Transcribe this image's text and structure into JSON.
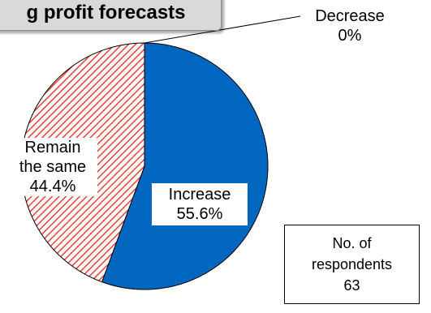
{
  "chart_data": {
    "type": "pie",
    "title": "g profit forecasts",
    "slices": [
      {
        "label": "Increase",
        "value": 55.6,
        "value_label": "55.6%",
        "color": "#0066c0",
        "pattern": "solid"
      },
      {
        "label": "Decrease",
        "value": 0,
        "value_label": "0%",
        "color": "#ffffff",
        "pattern": "solid"
      },
      {
        "label": "Remain the same",
        "label_lines": [
          "Remain",
          "the same"
        ],
        "value": 44.4,
        "value_label": "44.4%",
        "color": "#e8413c",
        "pattern": "diagonal-hatch"
      }
    ],
    "start_angle_deg": 0,
    "direction": "clockwise",
    "respondents": {
      "label_lines": [
        "No. of",
        "respondents"
      ],
      "count": "63"
    }
  }
}
